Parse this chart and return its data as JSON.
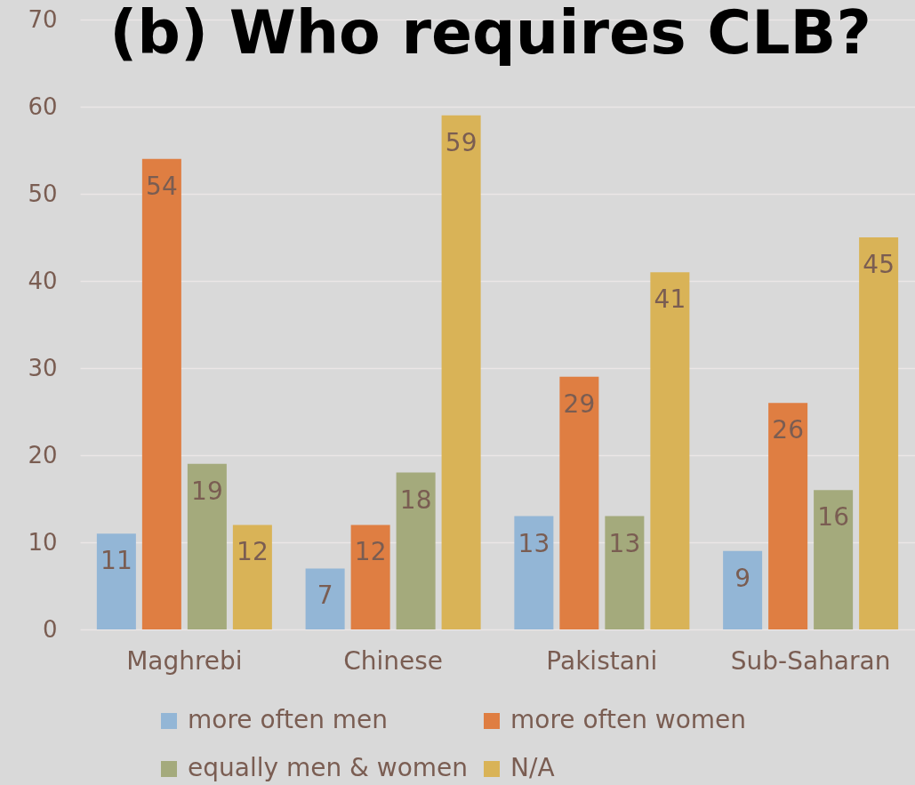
{
  "chart_data": {
    "type": "bar",
    "title": "(b) Who requires CLB?",
    "categories": [
      "Maghrebi",
      "Chinese",
      "Pakistani",
      "Sub-Saharan"
    ],
    "series": [
      {
        "name": "more often men",
        "color": "#93b6d6",
        "values": [
          11,
          7,
          13,
          9
        ]
      },
      {
        "name": "more often women",
        "color": "#df7e42",
        "values": [
          54,
          12,
          29,
          26
        ]
      },
      {
        "name": "equally men & women",
        "color": "#a4aa7c",
        "values": [
          19,
          18,
          13,
          16
        ]
      },
      {
        "name": "N/A",
        "color": "#d9b357",
        "values": [
          12,
          59,
          41,
          45
        ]
      }
    ],
    "ylim": [
      0,
      70
    ],
    "yticks": [
      0,
      10,
      20,
      30,
      40,
      50,
      60,
      70
    ],
    "grid": "y",
    "legend": "bottom",
    "data_labels": true
  }
}
